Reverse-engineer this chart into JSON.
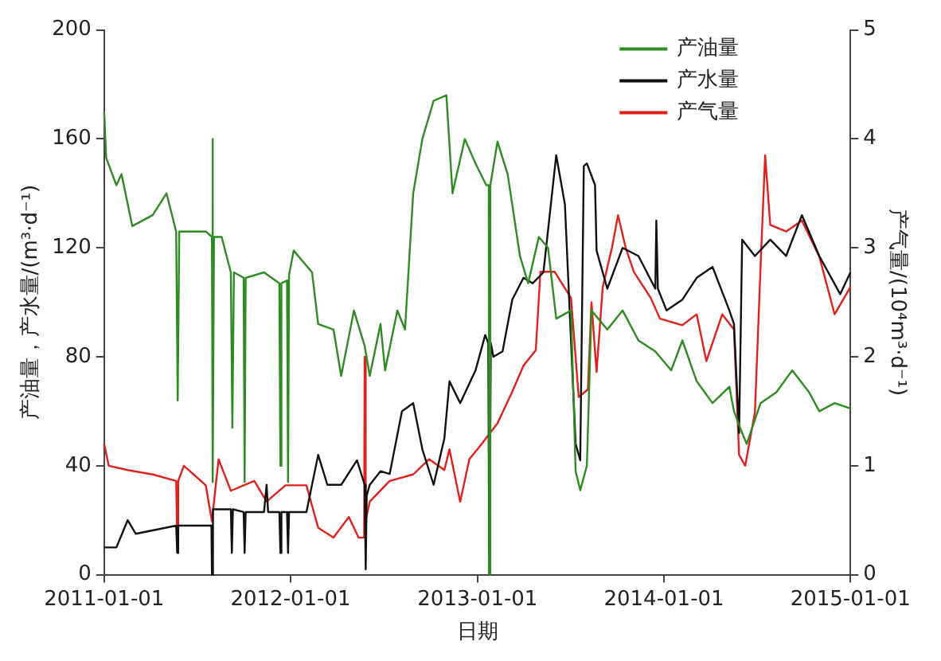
{
  "chart_data": {
    "type": "line",
    "xlabel": "日期",
    "ylabel": "产油量，产水量/(m³·d⁻¹)",
    "y2label": "产气量/(10⁴m³·d⁻¹)",
    "xlim": [
      "2011-01-01",
      "2015-01-01"
    ],
    "xticks": [
      "2011-01-01",
      "2012-01-01",
      "2013-01-01",
      "2014-01-01",
      "2015-01-01"
    ],
    "ylim": [
      0,
      200
    ],
    "yticks": [
      0,
      40,
      80,
      120,
      160,
      200
    ],
    "y2lim": [
      0,
      5
    ],
    "y2ticks": [
      0,
      1,
      2,
      3,
      4,
      5
    ],
    "legend": "top right",
    "marker": "none",
    "series": [
      {
        "name": "产油量",
        "color": "#2e8b22",
        "x": [
          "2011-01-01",
          "2011-01-05",
          "2011-01-25",
          "2011-02-04",
          "2011-02-25",
          "2011-04-06",
          "2011-05-03",
          "2011-05-22",
          "2011-05-25",
          "2011-05-28",
          "2011-07-19",
          "2011-07-31",
          "2011-08-01",
          "2011-08-02",
          "2011-08-04",
          "2011-08-19",
          "2011-09-06",
          "2011-09-09",
          "2011-09-12",
          "2011-10-01",
          "2011-10-03",
          "2011-10-05",
          "2011-11-10",
          "2011-12-10",
          "2011-12-12",
          "2011-12-14",
          "2011-12-25",
          "2011-12-27",
          "2011-12-29",
          "2012-01-07",
          "2012-02-12",
          "2012-02-24",
          "2012-03-25",
          "2012-04-09",
          "2012-05-04",
          "2012-05-25",
          "2012-06-04",
          "2012-06-25",
          "2012-07-04",
          "2012-07-28",
          "2012-08-12",
          "2012-08-28",
          "2012-09-15",
          "2012-10-07",
          "2012-11-01",
          "2012-11-13",
          "2012-12-07",
          "2012-12-28",
          "2013-01-18",
          "2013-01-23",
          "2013-01-24",
          "2013-01-26",
          "2013-02-09",
          "2013-03-01",
          "2013-03-25",
          "2013-04-10",
          "2013-05-01",
          "2013-05-19",
          "2013-06-04",
          "2013-07-03",
          "2013-07-12",
          "2013-07-21",
          "2013-08-03",
          "2013-08-12",
          "2013-09-12",
          "2013-10-12",
          "2013-11-12",
          "2013-12-15",
          "2014-01-15",
          "2014-02-06",
          "2014-03-06",
          "2014-04-06",
          "2014-05-09",
          "2014-05-18",
          "2014-06-03",
          "2014-06-12",
          "2014-07-09",
          "2014-08-09",
          "2014-09-09",
          "2014-10-12",
          "2014-11-01",
          "2014-12-01",
          "2015-01-01"
        ],
        "values": [
          170,
          153,
          143,
          147,
          128,
          132,
          140,
          126,
          64,
          126,
          126,
          124,
          160,
          34,
          124,
          124,
          111,
          54,
          111,
          109,
          34,
          109,
          111,
          107,
          40,
          107,
          108,
          34,
          110,
          119,
          111,
          92,
          90,
          73,
          97,
          84,
          73,
          92,
          75,
          97,
          90,
          140,
          160,
          174,
          176,
          140,
          160,
          151,
          143,
          143,
          0,
          143,
          159,
          147,
          117,
          107,
          124,
          120,
          94,
          97,
          38,
          31,
          40,
          97,
          90,
          97,
          86,
          82,
          75,
          86,
          71,
          63,
          69,
          60,
          52,
          48,
          63,
          67,
          75,
          67,
          60,
          63,
          61
        ]
      },
      {
        "name": "产水量",
        "color": "#111111",
        "x": [
          "2011-01-01",
          "2011-01-25",
          "2011-02-16",
          "2011-03-04",
          "2011-05-22",
          "2011-05-24",
          "2011-05-26",
          "2011-07-19",
          "2011-07-30",
          "2011-07-31",
          "2011-08-02",
          "2011-08-19",
          "2011-09-06",
          "2011-09-08",
          "2011-09-10",
          "2011-10-01",
          "2011-10-03",
          "2011-10-05",
          "2011-11-10",
          "2011-11-15",
          "2011-11-18",
          "2011-12-10",
          "2011-12-12",
          "2011-12-14",
          "2011-12-25",
          "2011-12-27",
          "2011-12-29",
          "2012-02-01",
          "2012-02-24",
          "2012-03-13",
          "2012-04-09",
          "2012-05-10",
          "2012-05-25",
          "2012-05-27",
          "2012-05-29",
          "2012-06-04",
          "2012-06-25",
          "2012-07-13",
          "2012-08-06",
          "2012-08-28",
          "2012-09-15",
          "2012-10-07",
          "2012-10-28",
          "2012-11-07",
          "2012-11-28",
          "2012-12-28",
          "2013-01-16",
          "2013-01-22",
          "2013-01-24",
          "2013-01-27",
          "2013-02-01",
          "2013-02-19",
          "2013-03-10",
          "2013-04-01",
          "2013-04-19",
          "2013-05-10",
          "2013-06-04",
          "2013-06-21",
          "2013-07-12",
          "2013-07-21",
          "2013-07-28",
          "2013-08-03",
          "2013-08-19",
          "2013-08-22",
          "2013-09-12",
          "2013-10-12",
          "2013-11-12",
          "2013-12-15",
          "2013-12-17",
          "2013-12-20",
          "2014-01-06",
          "2014-02-06",
          "2014-03-06",
          "2014-04-06",
          "2014-05-09",
          "2014-05-18",
          "2014-05-28",
          "2014-06-03",
          "2014-06-28",
          "2014-07-28",
          "2014-08-28",
          "2014-09-28",
          "2014-11-01",
          "2014-12-12",
          "2015-01-01"
        ],
        "values": [
          10,
          10,
          20,
          15,
          18,
          8,
          18,
          18,
          18,
          0,
          24,
          24,
          24,
          8,
          24,
          23,
          8,
          23,
          23,
          33,
          23,
          23,
          8,
          23,
          23,
          8,
          23,
          23,
          44,
          33,
          33,
          42,
          33,
          2,
          29,
          33,
          38,
          37,
          60,
          63,
          46,
          33,
          50,
          71,
          63,
          75,
          88,
          85,
          0,
          85,
          80,
          82,
          101,
          109,
          107,
          111,
          154,
          136,
          48,
          42,
          150,
          151,
          143,
          119,
          105,
          120,
          117,
          105,
          130,
          105,
          97,
          101,
          109,
          113,
          97,
          92,
          52,
          123,
          117,
          123,
          117,
          132,
          117,
          103,
          111
        ]
      },
      {
        "name": "产气量",
        "color": "#e0201b",
        "axis": "y2",
        "x": [
          "2011-01-01",
          "2011-01-10",
          "2011-02-16",
          "2011-04-06",
          "2011-05-22",
          "2011-05-24",
          "2011-05-26",
          "2011-06-06",
          "2011-07-19",
          "2011-07-31",
          "2011-08-13",
          "2011-09-06",
          "2011-10-22",
          "2011-11-15",
          "2011-12-22",
          "2012-02-01",
          "2012-02-24",
          "2012-03-25",
          "2012-04-24",
          "2012-05-13",
          "2012-05-24",
          "2012-05-25",
          "2012-05-27",
          "2012-06-04",
          "2012-07-13",
          "2012-08-28",
          "2012-09-28",
          "2012-10-28",
          "2012-11-07",
          "2012-11-28",
          "2012-12-16",
          "2013-01-09",
          "2013-02-09",
          "2013-03-10",
          "2013-04-01",
          "2013-04-25",
          "2013-05-04",
          "2013-06-01",
          "2013-07-03",
          "2013-07-18",
          "2013-08-05",
          "2013-08-12",
          "2013-08-22",
          "2013-09-03",
          "2013-09-21",
          "2013-10-03",
          "2013-10-18",
          "2013-11-03",
          "2013-12-06",
          "2013-12-24",
          "2014-02-06",
          "2014-03-06",
          "2014-03-25",
          "2014-04-25",
          "2014-05-18",
          "2014-05-28",
          "2014-06-09",
          "2014-06-28",
          "2014-07-09",
          "2014-07-18",
          "2014-07-28",
          "2014-08-28",
          "2014-09-28",
          "2014-11-01",
          "2014-12-01",
          "2015-01-01"
        ],
        "values": [
          1.2,
          1.0,
          0.96,
          0.92,
          0.86,
          0.34,
          0.86,
          1.0,
          0.82,
          0.49,
          1.06,
          0.77,
          0.86,
          0.67,
          0.82,
          0.82,
          0.43,
          0.34,
          0.53,
          0.34,
          0.34,
          2.0,
          0.5,
          0.67,
          0.86,
          0.92,
          1.06,
          0.96,
          1.15,
          0.67,
          1.06,
          1.2,
          1.39,
          1.68,
          1.92,
          2.06,
          2.78,
          2.78,
          2.54,
          1.63,
          1.7,
          2.5,
          1.86,
          2.64,
          3.0,
          3.3,
          3.0,
          2.78,
          2.54,
          2.35,
          2.29,
          2.39,
          1.96,
          2.39,
          2.25,
          1.1,
          1.0,
          1.49,
          2.82,
          3.85,
          3.21,
          3.15,
          3.25,
          2.92,
          2.39,
          2.64
        ]
      }
    ]
  }
}
